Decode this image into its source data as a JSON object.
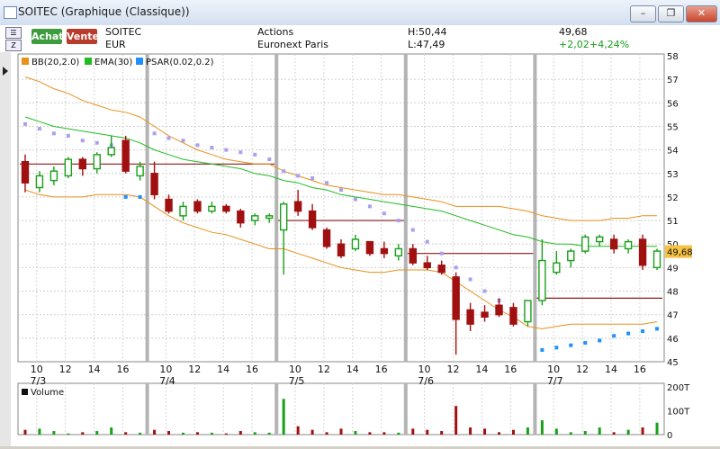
{
  "window": {
    "title": "SOITEC (Graphique (Classique))",
    "minimize": "–",
    "restore": "❐",
    "close": "✕"
  },
  "quote": {
    "symbol": "SOITEC",
    "currency": "EUR",
    "type": "Actions",
    "market": "Euronext Paris",
    "high": "H:50,44",
    "low": "L:47,49",
    "last": "49,68",
    "change": "+2,02",
    "change_pct": "+4,24%",
    "buy_label": "Achat",
    "sell_label": "Vente"
  },
  "legend": {
    "bb": "BB(20,2.0)",
    "ema": "EMA(30)",
    "psar": "PSAR(0.02,0.2)"
  },
  "colors": {
    "up": "#18a018",
    "down": "#a01010",
    "bb": "#e8901a",
    "ema": "#22bb22",
    "psar_above": "#a9a0ee",
    "psar_below": "#1e90ff",
    "last_tag": "#f5c242"
  },
  "price_axis": {
    "ticks": [
      "58",
      "57",
      "56",
      "55",
      "54",
      "53",
      "52",
      "51",
      "50",
      "49",
      "48",
      "47",
      "46",
      "45"
    ],
    "last_tag": "49,68"
  },
  "volume_axis": {
    "ticks": [
      "200T",
      "100T",
      "0"
    ],
    "label": "Volume"
  },
  "time_axis": {
    "hour_ticks": [
      "10",
      "12",
      "14",
      "16",
      "10",
      "12",
      "14",
      "16",
      "10",
      "12",
      "14",
      "16",
      "10",
      "12",
      "14",
      "16",
      "10",
      "12",
      "14",
      "16"
    ],
    "dates": [
      "7/3",
      "7/4",
      "7/5",
      "7/6",
      "7/7"
    ]
  },
  "chart_data": {
    "type": "candlestick",
    "ylim": [
      45,
      58
    ],
    "days": [
      "7/3",
      "7/4",
      "7/5",
      "7/6",
      "7/7"
    ],
    "candles": [
      {
        "o": 53.5,
        "h": 53.8,
        "l": 52.2,
        "c": 52.6
      },
      {
        "o": 52.4,
        "h": 53.1,
        "l": 52.2,
        "c": 52.9
      },
      {
        "o": 52.7,
        "h": 53.3,
        "l": 52.5,
        "c": 53.1
      },
      {
        "o": 52.9,
        "h": 53.7,
        "l": 52.8,
        "c": 53.6
      },
      {
        "o": 53.6,
        "h": 53.7,
        "l": 52.9,
        "c": 53.2
      },
      {
        "o": 53.2,
        "h": 53.9,
        "l": 53.0,
        "c": 53.8
      },
      {
        "o": 53.8,
        "h": 54.6,
        "l": 53.7,
        "c": 54.1
      },
      {
        "o": 54.4,
        "h": 54.6,
        "l": 53.0,
        "c": 53.1
      },
      {
        "o": 52.9,
        "h": 53.5,
        "l": 52.7,
        "c": 53.3
      },
      {
        "o": 53.0,
        "h": 53.5,
        "l": 51.9,
        "c": 52.1
      },
      {
        "o": 51.9,
        "h": 52.1,
        "l": 51.3,
        "c": 51.4
      },
      {
        "o": 51.2,
        "h": 51.8,
        "l": 51.0,
        "c": 51.6
      },
      {
        "o": 51.8,
        "h": 51.9,
        "l": 51.3,
        "c": 51.4
      },
      {
        "o": 51.4,
        "h": 51.8,
        "l": 51.3,
        "c": 51.6
      },
      {
        "o": 51.6,
        "h": 51.7,
        "l": 51.3,
        "c": 51.4
      },
      {
        "o": 51.4,
        "h": 51.5,
        "l": 50.7,
        "c": 50.9
      },
      {
        "o": 51.0,
        "h": 51.3,
        "l": 50.8,
        "c": 51.2
      },
      {
        "o": 51.1,
        "h": 51.3,
        "l": 50.9,
        "c": 51.2
      },
      {
        "o": 50.6,
        "h": 51.8,
        "l": 48.7,
        "c": 51.7
      },
      {
        "o": 51.8,
        "h": 52.3,
        "l": 51.2,
        "c": 51.4
      },
      {
        "o": 51.4,
        "h": 51.7,
        "l": 50.6,
        "c": 50.7
      },
      {
        "o": 50.6,
        "h": 50.7,
        "l": 49.8,
        "c": 49.9
      },
      {
        "o": 50.0,
        "h": 50.2,
        "l": 49.4,
        "c": 49.5
      },
      {
        "o": 49.8,
        "h": 50.4,
        "l": 49.7,
        "c": 50.2
      },
      {
        "o": 50.1,
        "h": 50.1,
        "l": 49.5,
        "c": 49.6
      },
      {
        "o": 49.8,
        "h": 50.1,
        "l": 49.4,
        "c": 49.6
      },
      {
        "o": 49.5,
        "h": 50.0,
        "l": 49.3,
        "c": 49.8
      },
      {
        "o": 49.8,
        "h": 50.0,
        "l": 49.1,
        "c": 49.2
      },
      {
        "o": 49.2,
        "h": 49.5,
        "l": 48.9,
        "c": 49.0
      },
      {
        "o": 49.1,
        "h": 49.3,
        "l": 48.7,
        "c": 48.8
      },
      {
        "o": 48.6,
        "h": 48.8,
        "l": 45.3,
        "c": 46.8
      },
      {
        "o": 47.2,
        "h": 47.5,
        "l": 46.3,
        "c": 46.6
      },
      {
        "o": 47.1,
        "h": 47.4,
        "l": 46.7,
        "c": 46.9
      },
      {
        "o": 47.4,
        "h": 47.7,
        "l": 46.9,
        "c": 47.0
      },
      {
        "o": 47.3,
        "h": 47.5,
        "l": 46.5,
        "c": 46.6
      },
      {
        "o": 46.7,
        "h": 47.6,
        "l": 46.5,
        "c": 47.6
      },
      {
        "o": 47.6,
        "h": 50.2,
        "l": 47.4,
        "c": 49.3
      },
      {
        "o": 48.8,
        "h": 49.7,
        "l": 48.7,
        "c": 49.2
      },
      {
        "o": 49.3,
        "h": 49.8,
        "l": 49.0,
        "c": 49.7
      },
      {
        "o": 49.7,
        "h": 50.4,
        "l": 49.6,
        "c": 50.3
      },
      {
        "o": 50.1,
        "h": 50.4,
        "l": 49.9,
        "c": 50.3
      },
      {
        "o": 50.2,
        "h": 50.4,
        "l": 49.6,
        "c": 49.8
      },
      {
        "o": 49.8,
        "h": 50.2,
        "l": 49.6,
        "c": 50.1
      },
      {
        "o": 50.2,
        "h": 50.4,
        "l": 48.9,
        "c": 49.1
      },
      {
        "o": 49.0,
        "h": 49.8,
        "l": 48.9,
        "c": 49.7
      }
    ],
    "volume": [
      20,
      25,
      15,
      5,
      10,
      15,
      30,
      10,
      8,
      20,
      15,
      8,
      10,
      8,
      5,
      15,
      10,
      8,
      150,
      35,
      20,
      10,
      25,
      15,
      10,
      10,
      8,
      25,
      20,
      15,
      120,
      30,
      25,
      10,
      20,
      30,
      60,
      25,
      10,
      15,
      30,
      10,
      20,
      30,
      50
    ],
    "session_close": [
      53.4,
      53.4,
      51.0,
      49.6,
      47.7
    ],
    "bb_upper": [
      57.1,
      56.9,
      56.6,
      56.4,
      56.1,
      55.9,
      55.7,
      55.6,
      55.4,
      55.0,
      54.6,
      54.3,
      54.0,
      53.8,
      53.6,
      53.5,
      53.4,
      53.4,
      53.1,
      52.9,
      52.7,
      52.5,
      52.4,
      52.3,
      52.2,
      52.1,
      52.1,
      52.0,
      51.9,
      51.8,
      51.6,
      51.6,
      51.6,
      51.6,
      51.5,
      51.4,
      51.2,
      51.1,
      51.0,
      51.0,
      51.0,
      51.1,
      51.1,
      51.2,
      51.2
    ],
    "bb_lower": [
      52.3,
      52.1,
      52.0,
      52.0,
      52.0,
      52.1,
      52.1,
      52.1,
      52.0,
      51.6,
      51.2,
      50.9,
      50.7,
      50.5,
      50.4,
      50.2,
      50.0,
      49.8,
      49.8,
      49.6,
      49.4,
      49.2,
      49.0,
      48.9,
      48.8,
      48.8,
      48.9,
      48.9,
      48.9,
      48.8,
      48.4,
      48.0,
      47.6,
      47.2,
      46.9,
      46.5,
      46.4,
      46.5,
      46.6,
      46.6,
      46.6,
      46.6,
      46.6,
      46.6,
      46.7
    ],
    "ema": [
      55.4,
      55.2,
      55.0,
      54.9,
      54.8,
      54.7,
      54.6,
      54.5,
      54.3,
      54.0,
      53.8,
      53.6,
      53.5,
      53.4,
      53.3,
      53.2,
      53.0,
      52.9,
      52.7,
      52.6,
      52.4,
      52.3,
      52.1,
      52.0,
      51.9,
      51.8,
      51.7,
      51.6,
      51.5,
      51.4,
      51.2,
      51.0,
      50.8,
      50.6,
      50.4,
      50.3,
      50.1,
      50.0,
      50.0,
      49.9,
      49.9,
      49.9,
      49.9,
      49.9,
      49.9
    ],
    "psar": [
      55.1,
      54.9,
      54.7,
      54.6,
      54.4,
      54.3,
      54.2,
      52.0,
      52.0,
      54.7,
      54.5,
      54.4,
      54.2,
      54.1,
      54.0,
      53.9,
      53.8,
      53.6,
      53.1,
      52.9,
      52.8,
      52.6,
      52.3,
      51.9,
      51.6,
      51.3,
      51.0,
      50.6,
      50.1,
      49.6,
      49.0,
      48.5,
      48.0,
      47.6,
      47.2,
      46.8,
      45.5,
      45.6,
      45.7,
      45.8,
      45.9,
      46.1,
      46.2,
      46.3,
      46.4
    ],
    "psar_side": [
      "a",
      "a",
      "a",
      "a",
      "a",
      "a",
      "a",
      "b",
      "b",
      "a",
      "a",
      "a",
      "a",
      "a",
      "a",
      "a",
      "a",
      "a",
      "a",
      "a",
      "a",
      "a",
      "a",
      "a",
      "a",
      "a",
      "a",
      "a",
      "a",
      "a",
      "a",
      "a",
      "a",
      "a",
      "a",
      "a",
      "b",
      "b",
      "b",
      "b",
      "b",
      "b",
      "b",
      "b",
      "b"
    ]
  }
}
